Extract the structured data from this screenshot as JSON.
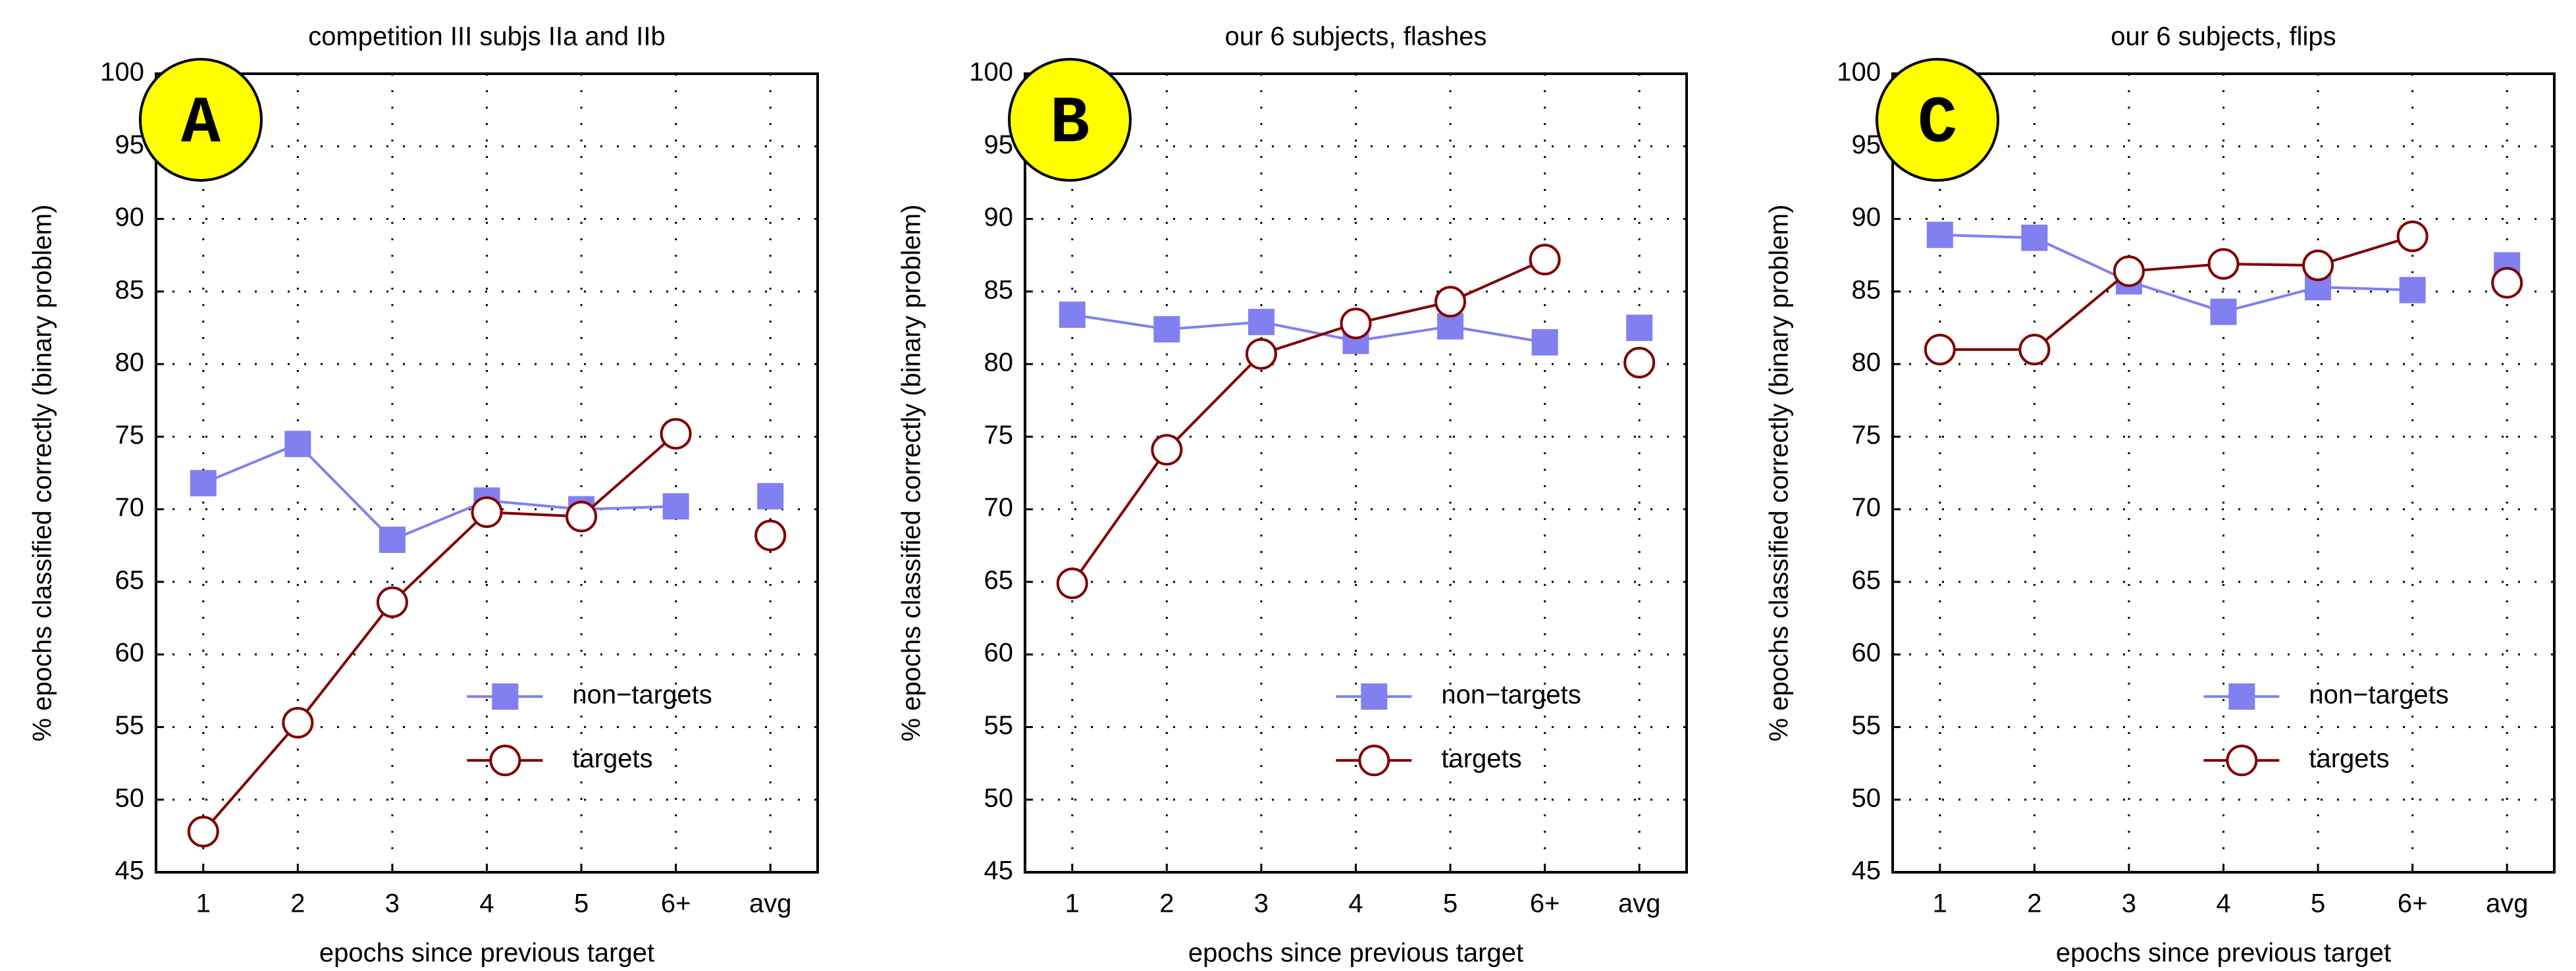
{
  "chart_data": [
    {
      "type": "line",
      "panel_label": "A",
      "title": "competition III subjs IIa and IIb",
      "xlabel": "epochs since previous target",
      "ylabel": "% epochs classified correctly (binary problem)",
      "categories": [
        "1",
        "2",
        "3",
        "4",
        "5",
        "6+",
        "avg"
      ],
      "series": [
        {
          "name": "non−targets",
          "color": "#8080f0",
          "marker": "square",
          "values": [
            71.8,
            74.5,
            67.9,
            70.6,
            70.0,
            70.2,
            70.9
          ]
        },
        {
          "name": "targets",
          "color": "#800000",
          "marker": "circle",
          "values": [
            47.8,
            55.3,
            63.6,
            69.8,
            69.5,
            75.2,
            68.2
          ]
        }
      ],
      "ylim": [
        45,
        100
      ],
      "yticks": [
        45,
        50,
        55,
        60,
        65,
        70,
        75,
        80,
        85,
        90,
        95,
        100
      ],
      "grid": true,
      "legend": "lower right"
    },
    {
      "type": "line",
      "panel_label": "B",
      "title": "our 6 subjects, flashes",
      "xlabel": "epochs since previous target",
      "ylabel": "% epochs classified correctly (binary problem)",
      "categories": [
        "1",
        "2",
        "3",
        "4",
        "5",
        "6+",
        "avg"
      ],
      "series": [
        {
          "name": "non−targets",
          "color": "#8080f0",
          "marker": "square",
          "values": [
            83.4,
            82.4,
            82.9,
            81.6,
            82.6,
            81.5,
            82.5
          ]
        },
        {
          "name": "targets",
          "color": "#800000",
          "marker": "circle",
          "values": [
            64.9,
            74.1,
            80.7,
            82.8,
            84.3,
            87.2,
            80.1
          ]
        }
      ],
      "ylim": [
        45,
        100
      ],
      "yticks": [
        45,
        50,
        55,
        60,
        65,
        70,
        75,
        80,
        85,
        90,
        95,
        100
      ],
      "grid": true,
      "legend": "lower right"
    },
    {
      "type": "line",
      "panel_label": "C",
      "title": "our 6 subjects, flips",
      "xlabel": "epochs since previous target",
      "ylabel": "% epochs classified correctly (binary problem)",
      "categories": [
        "1",
        "2",
        "3",
        "4",
        "5",
        "6+",
        "avg"
      ],
      "series": [
        {
          "name": "non−targets",
          "color": "#8080f0",
          "marker": "square",
          "values": [
            88.9,
            88.7,
            85.7,
            83.6,
            85.3,
            85.1,
            86.8
          ]
        },
        {
          "name": "targets",
          "color": "#800000",
          "marker": "circle",
          "values": [
            81.0,
            81.0,
            86.4,
            86.9,
            86.8,
            88.8,
            85.6
          ]
        }
      ],
      "ylim": [
        45,
        100
      ],
      "yticks": [
        45,
        50,
        55,
        60,
        65,
        70,
        75,
        80,
        85,
        90,
        95,
        100
      ],
      "grid": true,
      "legend": "lower right"
    }
  ]
}
